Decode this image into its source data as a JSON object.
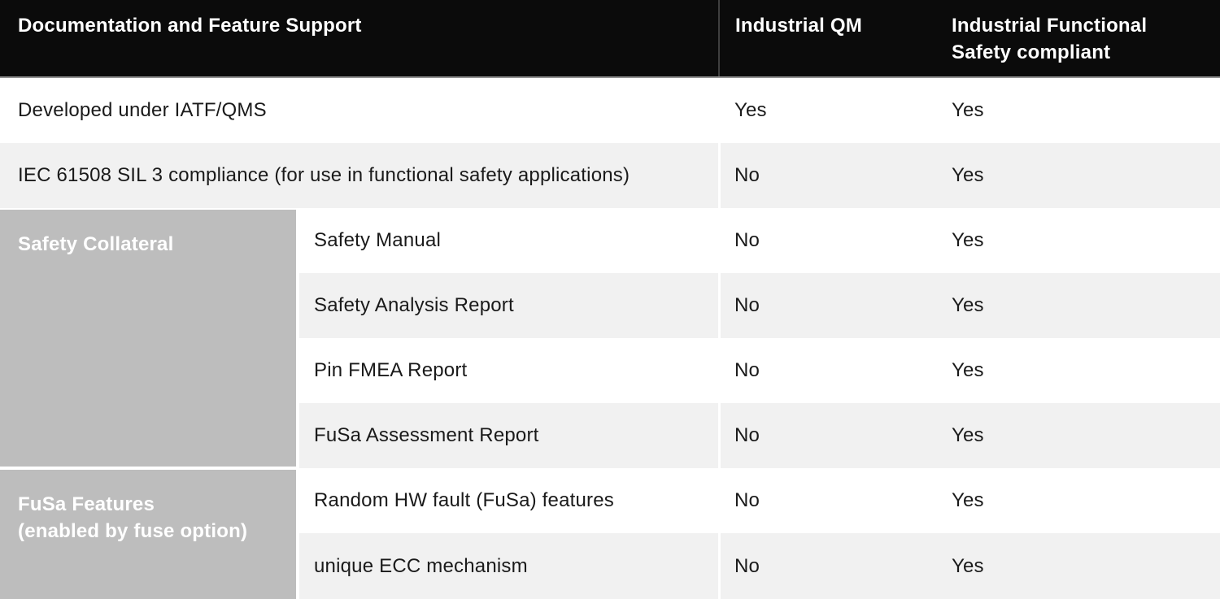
{
  "header": {
    "col1": "Documentation and Feature Support",
    "col2": "Industrial QM",
    "col3": "Industrial Functional Safety compliant"
  },
  "groups": [
    {
      "name": "Safety Collateral",
      "lines": [
        "Safety Collateral"
      ]
    },
    {
      "name": "FuSa Features (enabled by fuse option)",
      "lines": [
        "FuSa Features",
        "(enabled by fuse option)"
      ]
    }
  ],
  "rows": [
    {
      "label": "Developed under IATF/QMS",
      "industrial_qm": "Yes",
      "functional_safety": "Yes"
    },
    {
      "label": "IEC 61508 SIL 3 compliance (for use in functional safety applications)",
      "industrial_qm": "No",
      "functional_safety": "Yes"
    },
    {
      "label": "Safety Manual",
      "industrial_qm": "No",
      "functional_safety": "Yes"
    },
    {
      "label": "Safety Analysis Report",
      "industrial_qm": "No",
      "functional_safety": "Yes"
    },
    {
      "label": "Pin FMEA Report",
      "industrial_qm": "No",
      "functional_safety": "Yes"
    },
    {
      "label": "FuSa Assessment Report",
      "industrial_qm": "No",
      "functional_safety": "Yes"
    },
    {
      "label": "Random HW fault (FuSa) features",
      "industrial_qm": "No",
      "functional_safety": "Yes"
    },
    {
      "label": "unique ECC mechanism",
      "industrial_qm": "No",
      "functional_safety": "Yes"
    }
  ],
  "colors": {
    "header_bg": "#0b0b0b",
    "header_text": "#ffffff",
    "header_divider": "#3f3f3f",
    "header_underline": "#919191",
    "row_stripe": "#f1f1f1",
    "row_white": "#ffffff",
    "group_cell": "#bdbdbd",
    "body_text": "#1a1a1a"
  }
}
